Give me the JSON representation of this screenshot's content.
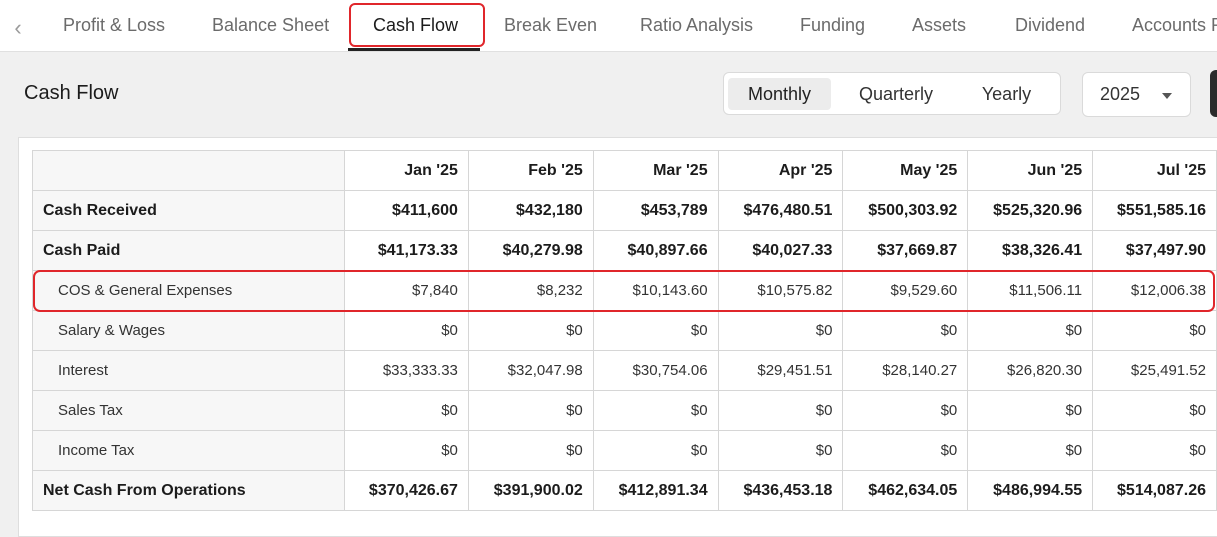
{
  "tabs": [
    {
      "label": "Profit & Loss",
      "active": false
    },
    {
      "label": "Balance Sheet",
      "active": false
    },
    {
      "label": "Cash Flow",
      "active": true
    },
    {
      "label": "Break Even",
      "active": false
    },
    {
      "label": "Ratio Analysis",
      "active": false
    },
    {
      "label": "Funding",
      "active": false
    },
    {
      "label": "Assets",
      "active": false
    },
    {
      "label": "Dividend",
      "active": false
    },
    {
      "label": "Accounts R",
      "active": false
    }
  ],
  "tab_prev_icon": "chevron-left-icon",
  "page_title": "Cash Flow",
  "period_toggle": {
    "options": [
      "Monthly",
      "Quarterly",
      "Yearly"
    ],
    "selected": "Monthly"
  },
  "year_select": {
    "value": "2025",
    "icon": "caret-down-icon"
  },
  "highlight_color": "#e0262b",
  "table": {
    "columns": [
      "Jan '25",
      "Feb '25",
      "Mar '25",
      "Apr '25",
      "May '25",
      "Jun '25",
      "Jul '25"
    ],
    "rows": [
      {
        "label": "Cash Received",
        "bold": true,
        "values": [
          "$411,600",
          "$432,180",
          "$453,789",
          "$476,480.51",
          "$500,303.92",
          "$525,320.96",
          "$551,585.16"
        ]
      },
      {
        "label": "Cash Paid",
        "bold": true,
        "values": [
          "$41,173.33",
          "$40,279.98",
          "$40,897.66",
          "$40,027.33",
          "$37,669.87",
          "$38,326.41",
          "$37,497.90"
        ]
      },
      {
        "label": "COS & General Expenses",
        "bold": false,
        "values": [
          "$7,840",
          "$8,232",
          "$10,143.60",
          "$10,575.82",
          "$9,529.60",
          "$11,506.11",
          "$12,006.38"
        ]
      },
      {
        "label": "Salary & Wages",
        "bold": false,
        "values": [
          "$0",
          "$0",
          "$0",
          "$0",
          "$0",
          "$0",
          "$0"
        ]
      },
      {
        "label": "Interest",
        "bold": false,
        "values": [
          "$33,333.33",
          "$32,047.98",
          "$30,754.06",
          "$29,451.51",
          "$28,140.27",
          "$26,820.30",
          "$25,491.52"
        ]
      },
      {
        "label": "Sales Tax",
        "bold": false,
        "values": [
          "$0",
          "$0",
          "$0",
          "$0",
          "$0",
          "$0",
          "$0"
        ]
      },
      {
        "label": "Income Tax",
        "bold": false,
        "values": [
          "$0",
          "$0",
          "$0",
          "$0",
          "$0",
          "$0",
          "$0"
        ]
      },
      {
        "label": "Net Cash From Operations",
        "bold": true,
        "values": [
          "$370,426.67",
          "$391,900.02",
          "$412,891.34",
          "$436,453.18",
          "$462,634.05",
          "$486,994.55",
          "$514,087.26"
        ]
      }
    ]
  }
}
